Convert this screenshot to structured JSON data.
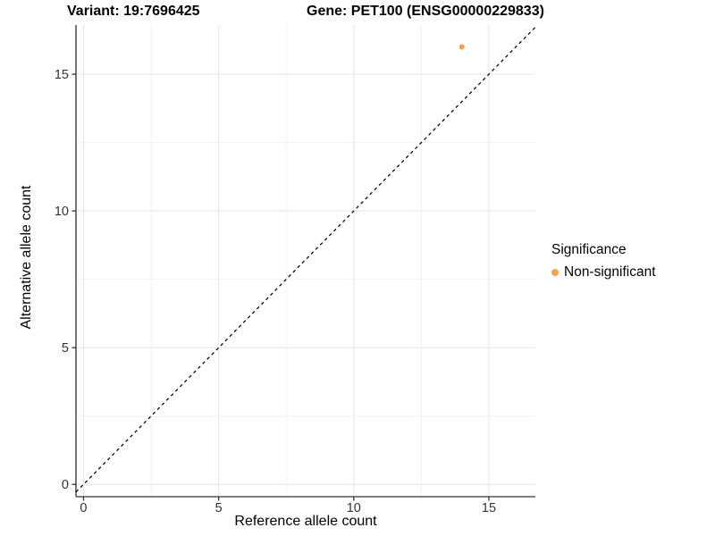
{
  "window": {
    "background": "#FFFFFF"
  },
  "colors": {
    "axis_line": "#555555",
    "tick_mark": "#333333",
    "tick_label": "#333333",
    "grid_major": "#E4E4E4",
    "grid_minor": "#F2F2F2",
    "identity_line": "#000000",
    "point": "#F9A242",
    "title_text": "#000000"
  },
  "chart_data": {
    "type": "scatter",
    "titles": {
      "variant": "Variant: 19:7696425",
      "gene": "Gene: PET100 (ENSG00000229833)"
    },
    "xlabel": "Reference allele count",
    "ylabel": "Alternative allele count",
    "x_ticks": [
      0,
      5,
      10,
      15
    ],
    "y_ticks": [
      0,
      5,
      10,
      15
    ],
    "x_minor_ticks": [
      2.5,
      7.5,
      12.5
    ],
    "y_minor_ticks": [
      2.5,
      7.5,
      12.5
    ],
    "xlim": [
      -0.28,
      16.72
    ],
    "ylim": [
      -0.45,
      16.8
    ],
    "grid": "major+minor",
    "legend_position": "right",
    "reference_line": {
      "equation": "y = x",
      "style": "dashed",
      "color": "#000000"
    },
    "series": [
      {
        "name": "Non-significant",
        "color": "#F9A242",
        "points": [
          {
            "x": 14,
            "y": 16
          }
        ]
      }
    ],
    "legend": {
      "title": "Significance",
      "items": [
        {
          "label": "Non-significant",
          "color": "#F9A242"
        }
      ]
    }
  }
}
